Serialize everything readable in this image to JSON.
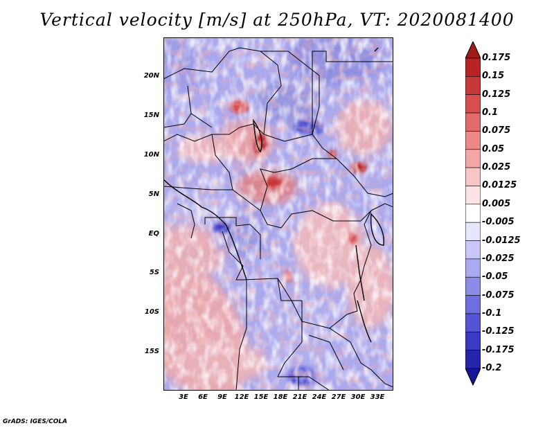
{
  "title": "Vertical velocity [m/s] at 250hPa, VT: 2020081400",
  "map": {
    "lat_labels": [
      "20N",
      "15N",
      "10N",
      "5N",
      "EQ",
      "5S",
      "10S",
      "15S"
    ],
    "lon_labels": [
      "3E",
      "6E",
      "9E",
      "12E",
      "15E",
      "18E",
      "21E",
      "24E",
      "27E",
      "30E",
      "33E"
    ]
  },
  "colorbar": {
    "levels": [
      "0.175",
      "0.15",
      "0.125",
      "0.1",
      "0.075",
      "0.05",
      "0.025",
      "0.0125",
      "0.005",
      "-0.005",
      "-0.0125",
      "-0.025",
      "-0.05",
      "-0.075",
      "-0.1",
      "-0.125",
      "-0.175",
      "-0.2"
    ],
    "colors": [
      "#a01a1a",
      "#b82424",
      "#c83838",
      "#d84e4e",
      "#e26a6a",
      "#ec8888",
      "#f2a6a6",
      "#f8c6c6",
      "#fce4e4",
      "#ffffff",
      "#e6e6fc",
      "#c8c8f6",
      "#aaaaf0",
      "#8c8ce6",
      "#6e6ee0",
      "#5454d4",
      "#3a3ac4",
      "#2424ac",
      "#16149a"
    ]
  },
  "footer": "GrADS: IGES/COLA"
}
